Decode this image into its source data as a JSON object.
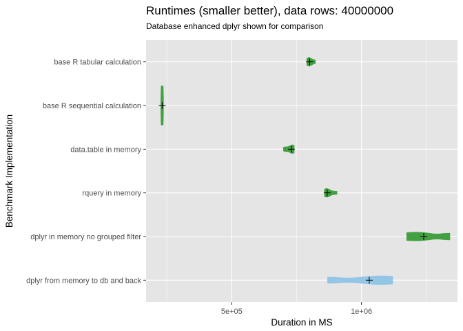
{
  "chart_data": {
    "type": "violin",
    "title": "Runtimes (smaller better), data rows: 40000000",
    "subtitle": "Database enhanced dplyr shown for comparison",
    "xlabel": "Duration in MS",
    "ylabel": "Benchmark Implementation",
    "xlim": [
      170000,
      1370000
    ],
    "x_ticks": [
      {
        "value": 500000,
        "label": "5e+05"
      },
      {
        "value": 1000000,
        "label": "1e+06"
      }
    ],
    "grid": true,
    "legend": "none",
    "categories": [
      "base R tabular calculation",
      "base R sequential calculation",
      "data.table in memory",
      "rquery in memory",
      "dplyr in memory no grouped filter",
      "dplyr from memory to db and back"
    ],
    "series": [
      {
        "category": "base R tabular calculation",
        "values": [
          790000,
          793000,
          797000,
          800000,
          805000,
          812000,
          822000
        ],
        "mean": 800000,
        "fill": "#3a9d3a"
      },
      {
        "category": "base R sequential calculation",
        "values": [
          230000,
          231000,
          232000,
          233000,
          234000
        ],
        "mean": 232000,
        "fill": "#3a9d3a"
      },
      {
        "category": "data.table in memory",
        "values": [
          700000,
          712000,
          725000,
          733000,
          737000,
          740000
        ],
        "mean": 730000,
        "fill": "#3a9d3a"
      },
      {
        "category": "rquery in memory",
        "values": [
          858000,
          862000,
          866000,
          872000,
          885000,
          905000
        ],
        "mean": 868000,
        "fill": "#3a9d3a"
      },
      {
        "category": "dplyr in memory no grouped filter",
        "values": [
          1175000,
          1240000,
          1340000
        ],
        "mean": 1240000,
        "fill": "#3a9d3a"
      },
      {
        "category": "dplyr from memory to db and back",
        "values": [
          870000,
          1030000,
          1120000
        ],
        "mean": 1030000,
        "fill": "#8fc4e6"
      }
    ]
  }
}
